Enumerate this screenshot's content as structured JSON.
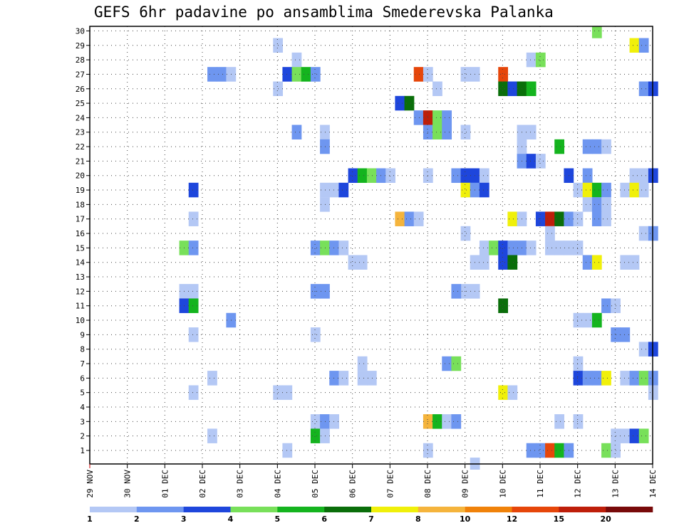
{
  "chart_data": {
    "type": "heatmap",
    "title": "GEFS 6hr padavine po ansamblima Smederevska Palanka",
    "xlabel": "",
    "ylabel": "",
    "x_unit": "6-hour step from 29 NOV 00Z",
    "x_ticks": [
      "29 NOV",
      "30 NOV",
      "01 DEC",
      "02 DEC",
      "03 DEC",
      "04 DEC",
      "05 DEC",
      "06 DEC",
      "07 DEC",
      "08 DEC",
      "09 DEC",
      "10 DEC",
      "11 DEC",
      "12 DEC",
      "13 DEC",
      "14 DEC"
    ],
    "y_ticks": [
      1,
      2,
      3,
      4,
      5,
      6,
      7,
      8,
      9,
      10,
      11,
      12,
      13,
      14,
      15,
      16,
      17,
      18,
      19,
      20,
      21,
      22,
      23,
      24,
      25,
      26,
      27,
      28,
      29,
      30
    ],
    "xlim": [
      0,
      60
    ],
    "ylim": [
      0.5,
      30.5
    ],
    "grid": true,
    "legend": "bottom colorbar",
    "colorbar": {
      "ticks": [
        "1",
        "2",
        "3",
        "4",
        "5",
        "6",
        "7",
        "8",
        "10",
        "12",
        "15",
        "20"
      ],
      "colors": [
        "#b4c8f5",
        "#6e96f0",
        "#1e46dc",
        "#78e05a",
        "#14b41e",
        "#0a6e0a",
        "#f0f00a",
        "#f5b43c",
        "#f0820a",
        "#e6460a",
        "#be1e0a",
        "#780a0a"
      ]
    },
    "cells": [
      {
        "x": 54,
        "y": 30,
        "c": 4
      },
      {
        "x": 20,
        "y": 29,
        "c": 1
      },
      {
        "x": 58,
        "y": 29,
        "c": 7
      },
      {
        "x": 59,
        "y": 29,
        "c": 2
      },
      {
        "x": 22,
        "y": 28,
        "c": 1
      },
      {
        "x": 47,
        "y": 28,
        "c": 1
      },
      {
        "x": 48,
        "y": 28,
        "c": 4
      },
      {
        "x": 13,
        "y": 27,
        "c": 2
      },
      {
        "x": 14,
        "y": 27,
        "c": 2
      },
      {
        "x": 15,
        "y": 27,
        "c": 1
      },
      {
        "x": 21,
        "y": 27,
        "c": 3
      },
      {
        "x": 22,
        "y": 27,
        "c": 4
      },
      {
        "x": 23,
        "y": 27,
        "c": 5
      },
      {
        "x": 24,
        "y": 27,
        "c": 2
      },
      {
        "x": 35,
        "y": 27,
        "c": 10
      },
      {
        "x": 36,
        "y": 27,
        "c": 1
      },
      {
        "x": 40,
        "y": 27,
        "c": 1
      },
      {
        "x": 41,
        "y": 27,
        "c": 1
      },
      {
        "x": 44,
        "y": 27,
        "c": 10
      },
      {
        "x": 20,
        "y": 26,
        "c": 1
      },
      {
        "x": 37,
        "y": 26,
        "c": 1
      },
      {
        "x": 44,
        "y": 26,
        "c": 6
      },
      {
        "x": 45,
        "y": 26,
        "c": 3
      },
      {
        "x": 46,
        "y": 26,
        "c": 6
      },
      {
        "x": 47,
        "y": 26,
        "c": 5
      },
      {
        "x": 59,
        "y": 26,
        "c": 2
      },
      {
        "x": 60,
        "y": 26,
        "c": 3
      },
      {
        "x": 33,
        "y": 25,
        "c": 3
      },
      {
        "x": 34,
        "y": 25,
        "c": 6
      },
      {
        "x": 35,
        "y": 24,
        "c": 2
      },
      {
        "x": 36,
        "y": 24,
        "c": 11
      },
      {
        "x": 37,
        "y": 24,
        "c": 4
      },
      {
        "x": 38,
        "y": 24,
        "c": 2
      },
      {
        "x": 22,
        "y": 23,
        "c": 2
      },
      {
        "x": 25,
        "y": 23,
        "c": 1
      },
      {
        "x": 36,
        "y": 23,
        "c": 2
      },
      {
        "x": 37,
        "y": 23,
        "c": 4
      },
      {
        "x": 38,
        "y": 23,
        "c": 2
      },
      {
        "x": 40,
        "y": 23,
        "c": 1
      },
      {
        "x": 46,
        "y": 23,
        "c": 1
      },
      {
        "x": 47,
        "y": 23,
        "c": 1
      },
      {
        "x": 25,
        "y": 22,
        "c": 2
      },
      {
        "x": 46,
        "y": 22,
        "c": 1
      },
      {
        "x": 50,
        "y": 22,
        "c": 5
      },
      {
        "x": 53,
        "y": 22,
        "c": 2
      },
      {
        "x": 54,
        "y": 22,
        "c": 2
      },
      {
        "x": 55,
        "y": 22,
        "c": 1
      },
      {
        "x": 46,
        "y": 21,
        "c": 2
      },
      {
        "x": 47,
        "y": 21,
        "c": 3
      },
      {
        "x": 48,
        "y": 21,
        "c": 1
      },
      {
        "x": 28,
        "y": 20,
        "c": 3
      },
      {
        "x": 29,
        "y": 20,
        "c": 5
      },
      {
        "x": 30,
        "y": 20,
        "c": 4
      },
      {
        "x": 31,
        "y": 20,
        "c": 2
      },
      {
        "x": 32,
        "y": 20,
        "c": 1
      },
      {
        "x": 36,
        "y": 20,
        "c": 1
      },
      {
        "x": 39,
        "y": 20,
        "c": 2
      },
      {
        "x": 40,
        "y": 20,
        "c": 3
      },
      {
        "x": 41,
        "y": 20,
        "c": 3
      },
      {
        "x": 42,
        "y": 20,
        "c": 1
      },
      {
        "x": 51,
        "y": 20,
        "c": 3
      },
      {
        "x": 53,
        "y": 20,
        "c": 2
      },
      {
        "x": 58,
        "y": 20,
        "c": 1
      },
      {
        "x": 59,
        "y": 20,
        "c": 1
      },
      {
        "x": 60,
        "y": 20,
        "c": 3
      },
      {
        "x": 11,
        "y": 19,
        "c": 3
      },
      {
        "x": 25,
        "y": 19,
        "c": 1
      },
      {
        "x": 26,
        "y": 19,
        "c": 1
      },
      {
        "x": 27,
        "y": 19,
        "c": 3
      },
      {
        "x": 40,
        "y": 19,
        "c": 7
      },
      {
        "x": 41,
        "y": 19,
        "c": 2
      },
      {
        "x": 42,
        "y": 19,
        "c": 3
      },
      {
        "x": 52,
        "y": 19,
        "c": 1
      },
      {
        "x": 53,
        "y": 19,
        "c": 7
      },
      {
        "x": 54,
        "y": 19,
        "c": 5
      },
      {
        "x": 55,
        "y": 19,
        "c": 2
      },
      {
        "x": 57,
        "y": 19,
        "c": 1
      },
      {
        "x": 58,
        "y": 19,
        "c": 7
      },
      {
        "x": 59,
        "y": 19,
        "c": 1
      },
      {
        "x": 25,
        "y": 18,
        "c": 1
      },
      {
        "x": 33,
        "y": 17,
        "c": 8
      },
      {
        "x": 34,
        "y": 17,
        "c": 2
      },
      {
        "x": 35,
        "y": 17,
        "c": 1
      },
      {
        "x": 45,
        "y": 17,
        "c": 7
      },
      {
        "x": 46,
        "y": 17,
        "c": 1
      },
      {
        "x": 48,
        "y": 17,
        "c": 3
      },
      {
        "x": 49,
        "y": 17,
        "c": 11
      },
      {
        "x": 50,
        "y": 17,
        "c": 6
      },
      {
        "x": 51,
        "y": 17,
        "c": 2
      },
      {
        "x": 52,
        "y": 17,
        "c": 1
      },
      {
        "x": 54,
        "y": 17,
        "c": 2
      },
      {
        "x": 55,
        "y": 17,
        "c": 1
      },
      {
        "x": 53,
        "y": 18,
        "c": 1
      },
      {
        "x": 54,
        "y": 18,
        "c": 2
      },
      {
        "x": 55,
        "y": 18,
        "c": 1
      },
      {
        "x": 11,
        "y": 17,
        "c": 1
      },
      {
        "x": 49,
        "y": 16,
        "c": 1
      },
      {
        "x": 10,
        "y": 15,
        "c": 4
      },
      {
        "x": 11,
        "y": 15,
        "c": 2
      },
      {
        "x": 40,
        "y": 16,
        "c": 1
      },
      {
        "x": 59,
        "y": 16,
        "c": 1
      },
      {
        "x": 60,
        "y": 16,
        "c": 2
      },
      {
        "x": 24,
        "y": 15,
        "c": 2
      },
      {
        "x": 25,
        "y": 15,
        "c": 4
      },
      {
        "x": 26,
        "y": 15,
        "c": 2
      },
      {
        "x": 27,
        "y": 15,
        "c": 1
      },
      {
        "x": 42,
        "y": 15,
        "c": 1
      },
      {
        "x": 43,
        "y": 15,
        "c": 4
      },
      {
        "x": 44,
        "y": 15,
        "c": 3
      },
      {
        "x": 45,
        "y": 15,
        "c": 2
      },
      {
        "x": 46,
        "y": 15,
        "c": 2
      },
      {
        "x": 47,
        "y": 15,
        "c": 1
      },
      {
        "x": 49,
        "y": 15,
        "c": 1
      },
      {
        "x": 50,
        "y": 15,
        "c": 1
      },
      {
        "x": 51,
        "y": 15,
        "c": 1
      },
      {
        "x": 52,
        "y": 15,
        "c": 1
      },
      {
        "x": 41,
        "y": 14,
        "c": 1
      },
      {
        "x": 42,
        "y": 14,
        "c": 1
      },
      {
        "x": 44,
        "y": 14,
        "c": 3
      },
      {
        "x": 45,
        "y": 14,
        "c": 6
      },
      {
        "x": 28,
        "y": 14,
        "c": 1
      },
      {
        "x": 29,
        "y": 14,
        "c": 1
      },
      {
        "x": 53,
        "y": 14,
        "c": 2
      },
      {
        "x": 54,
        "y": 14,
        "c": 7
      },
      {
        "x": 57,
        "y": 14,
        "c": 1
      },
      {
        "x": 58,
        "y": 14,
        "c": 1
      },
      {
        "x": 10,
        "y": 12,
        "c": 1
      },
      {
        "x": 11,
        "y": 12,
        "c": 1
      },
      {
        "x": 24,
        "y": 12,
        "c": 2
      },
      {
        "x": 25,
        "y": 12,
        "c": 2
      },
      {
        "x": 40,
        "y": 12,
        "c": 1
      },
      {
        "x": 41,
        "y": 12,
        "c": 1
      },
      {
        "x": 39,
        "y": 12,
        "c": 2
      },
      {
        "x": 10,
        "y": 11,
        "c": 3
      },
      {
        "x": 11,
        "y": 11,
        "c": 5
      },
      {
        "x": 44,
        "y": 11,
        "c": 6
      },
      {
        "x": 55,
        "y": 11,
        "c": 2
      },
      {
        "x": 56,
        "y": 11,
        "c": 1
      },
      {
        "x": 15,
        "y": 10,
        "c": 2
      },
      {
        "x": 52,
        "y": 10,
        "c": 1
      },
      {
        "x": 53,
        "y": 10,
        "c": 1
      },
      {
        "x": 54,
        "y": 10,
        "c": 5
      },
      {
        "x": 11,
        "y": 9,
        "c": 1
      },
      {
        "x": 24,
        "y": 9,
        "c": 1
      },
      {
        "x": 56,
        "y": 9,
        "c": 2
      },
      {
        "x": 57,
        "y": 9,
        "c": 2
      },
      {
        "x": 59,
        "y": 8,
        "c": 1
      },
      {
        "x": 60,
        "y": 8,
        "c": 3
      },
      {
        "x": 29,
        "y": 7,
        "c": 1
      },
      {
        "x": 38,
        "y": 7,
        "c": 2
      },
      {
        "x": 39,
        "y": 7,
        "c": 4
      },
      {
        "x": 52,
        "y": 7,
        "c": 1
      },
      {
        "x": 13,
        "y": 6,
        "c": 1
      },
      {
        "x": 26,
        "y": 6,
        "c": 2
      },
      {
        "x": 27,
        "y": 6,
        "c": 1
      },
      {
        "x": 29,
        "y": 6,
        "c": 1
      },
      {
        "x": 30,
        "y": 6,
        "c": 1
      },
      {
        "x": 52,
        "y": 6,
        "c": 3
      },
      {
        "x": 53,
        "y": 6,
        "c": 2
      },
      {
        "x": 54,
        "y": 6,
        "c": 2
      },
      {
        "x": 55,
        "y": 6,
        "c": 7
      },
      {
        "x": 57,
        "y": 6,
        "c": 1
      },
      {
        "x": 58,
        "y": 6,
        "c": 2
      },
      {
        "x": 59,
        "y": 6,
        "c": 4
      },
      {
        "x": 60,
        "y": 6,
        "c": 2
      },
      {
        "x": 11,
        "y": 5,
        "c": 1
      },
      {
        "x": 20,
        "y": 5,
        "c": 1
      },
      {
        "x": 21,
        "y": 5,
        "c": 1
      },
      {
        "x": 44,
        "y": 5,
        "c": 7
      },
      {
        "x": 45,
        "y": 5,
        "c": 1
      },
      {
        "x": 60,
        "y": 5,
        "c": 1
      },
      {
        "x": 24,
        "y": 3,
        "c": 1
      },
      {
        "x": 25,
        "y": 3,
        "c": 2
      },
      {
        "x": 26,
        "y": 3,
        "c": 1
      },
      {
        "x": 36,
        "y": 3,
        "c": 8
      },
      {
        "x": 37,
        "y": 3,
        "c": 5
      },
      {
        "x": 38,
        "y": 3,
        "c": 1
      },
      {
        "x": 39,
        "y": 3,
        "c": 2
      },
      {
        "x": 50,
        "y": 3,
        "c": 1
      },
      {
        "x": 52,
        "y": 3,
        "c": 1
      },
      {
        "x": 13,
        "y": 2,
        "c": 1
      },
      {
        "x": 24,
        "y": 2,
        "c": 5
      },
      {
        "x": 25,
        "y": 2,
        "c": 1
      },
      {
        "x": 56,
        "y": 2,
        "c": 1
      },
      {
        "x": 57,
        "y": 2,
        "c": 1
      },
      {
        "x": 58,
        "y": 2,
        "c": 3
      },
      {
        "x": 59,
        "y": 2,
        "c": 4
      },
      {
        "x": 21,
        "y": 1,
        "c": 1
      },
      {
        "x": 36,
        "y": 1,
        "c": 1
      },
      {
        "x": 47,
        "y": 1,
        "c": 2
      },
      {
        "x": 48,
        "y": 1,
        "c": 2
      },
      {
        "x": 49,
        "y": 1,
        "c": 10
      },
      {
        "x": 50,
        "y": 1,
        "c": 5
      },
      {
        "x": 51,
        "y": 1,
        "c": 2
      },
      {
        "x": 55,
        "y": 1,
        "c": 4
      },
      {
        "x": 56,
        "y": 1,
        "c": 1
      },
      {
        "x": 41,
        "y": 0,
        "c": 1
      }
    ]
  }
}
